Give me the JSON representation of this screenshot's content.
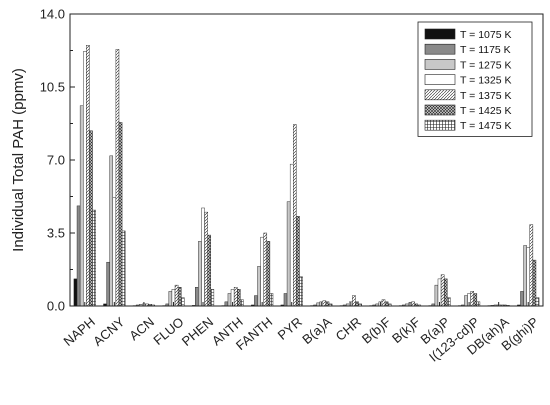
{
  "chart_data": {
    "type": "bar",
    "title": "",
    "xlabel": "",
    "ylabel": "Individual Total PAH (ppmv)",
    "ylim": [
      0,
      14
    ],
    "yticks": [
      "0.0",
      "3.5",
      "7.0",
      "10.5",
      "14.0"
    ],
    "grid": false,
    "legend_position": "top-right",
    "categories": [
      "NAPH",
      "ACNY",
      "ACN",
      "FLUO",
      "PHEN",
      "ANTH",
      "FANTH",
      "PYR",
      "B(a)A",
      "CHR",
      "B(b)F",
      "B(k)F",
      "B(a)P",
      "I(123-cd)P",
      "DB(ah)A",
      "B(ghi)P"
    ],
    "series": [
      {
        "name": "T = 1075 K",
        "values": [
          1.3,
          0.1,
          0.02,
          0.02,
          0.03,
          0.02,
          0.05,
          0.05,
          0.02,
          0.02,
          0.02,
          0.02,
          0.02,
          0.02,
          0.02,
          0.05
        ]
      },
      {
        "name": "T = 1175 K",
        "values": [
          4.8,
          2.1,
          0.05,
          0.1,
          0.9,
          0.2,
          0.5,
          0.6,
          0.05,
          0.05,
          0.05,
          0.05,
          0.1,
          0.05,
          0.03,
          0.7
        ]
      },
      {
        "name": "T = 1275 K",
        "values": [
          9.6,
          7.2,
          0.08,
          0.7,
          3.1,
          0.6,
          1.9,
          5.0,
          0.15,
          0.1,
          0.1,
          0.1,
          1.0,
          0.5,
          0.05,
          2.9
        ]
      },
      {
        "name": "T = 1325 K",
        "values": [
          12.2,
          5.2,
          0.1,
          0.8,
          4.7,
          0.8,
          3.3,
          6.8,
          0.2,
          0.2,
          0.2,
          0.15,
          1.3,
          0.6,
          0.05,
          2.8
        ]
      },
      {
        "name": "T = 1375 K",
        "values": [
          12.5,
          12.3,
          0.1,
          1.0,
          4.5,
          0.9,
          3.5,
          8.7,
          0.25,
          0.5,
          0.3,
          0.2,
          1.5,
          0.7,
          0.05,
          3.9
        ]
      },
      {
        "name": "T = 1425 K",
        "values": [
          8.4,
          8.8,
          0.08,
          0.9,
          3.4,
          0.8,
          3.1,
          4.3,
          0.2,
          0.2,
          0.2,
          0.1,
          1.3,
          0.6,
          0.05,
          2.2
        ]
      },
      {
        "name": "T = 1475 K",
        "values": [
          4.6,
          3.6,
          0.05,
          0.4,
          0.8,
          0.3,
          0.6,
          1.4,
          0.1,
          0.1,
          0.1,
          0.05,
          0.4,
          0.2,
          0.03,
          0.4
        ]
      }
    ],
    "series_styles": [
      {
        "fill": "#111111",
        "pattern": "solid"
      },
      {
        "fill": "#8a8a8a",
        "pattern": "solid"
      },
      {
        "fill": "#c8c8c8",
        "pattern": "solid"
      },
      {
        "fill": "#ffffff",
        "pattern": "solid"
      },
      {
        "fill": "#ffffff",
        "pattern": "diagonal"
      },
      {
        "fill": "#ffffff",
        "pattern": "crosshatch"
      },
      {
        "fill": "#ffffff",
        "pattern": "grid"
      }
    ]
  }
}
